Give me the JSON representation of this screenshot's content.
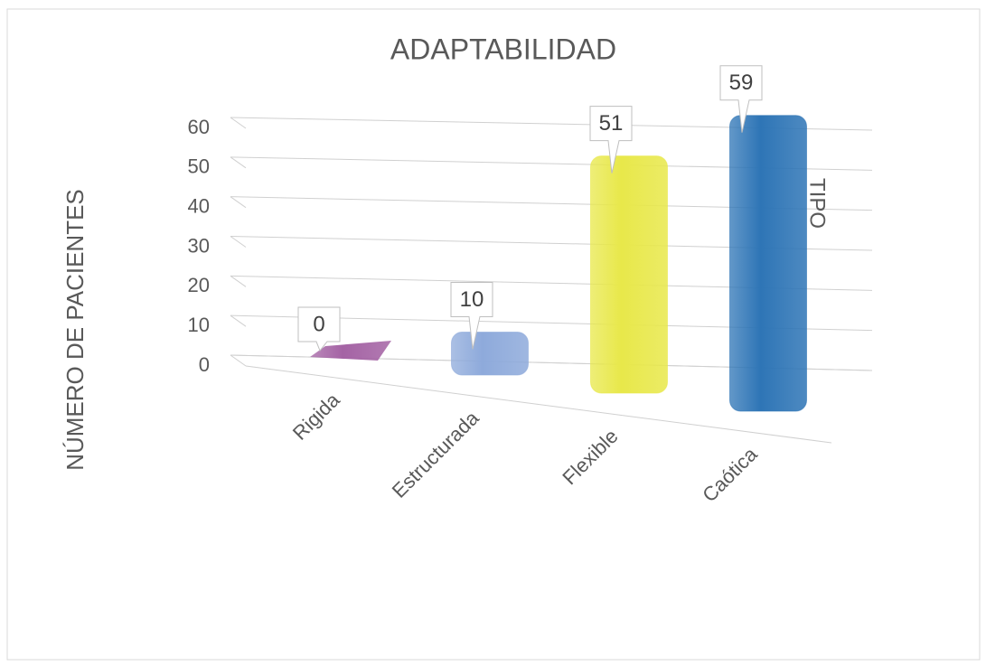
{
  "chart_data": {
    "type": "bar",
    "title": "ADAPTABILIDAD",
    "y_label": "NÚMERO DE PACIENTES",
    "x_label": "TIPO",
    "categories": [
      "Rigida",
      "Estructurada",
      "Flexible",
      "Caótica"
    ],
    "values": [
      0,
      10,
      51,
      59
    ],
    "colors": [
      "#a463a4",
      "#8eaadb",
      "#e8e84a",
      "#2e75b6"
    ],
    "ylim": [
      0,
      60
    ],
    "yticks": [
      0,
      10,
      20,
      30,
      40,
      50,
      60
    ],
    "grid": true
  }
}
